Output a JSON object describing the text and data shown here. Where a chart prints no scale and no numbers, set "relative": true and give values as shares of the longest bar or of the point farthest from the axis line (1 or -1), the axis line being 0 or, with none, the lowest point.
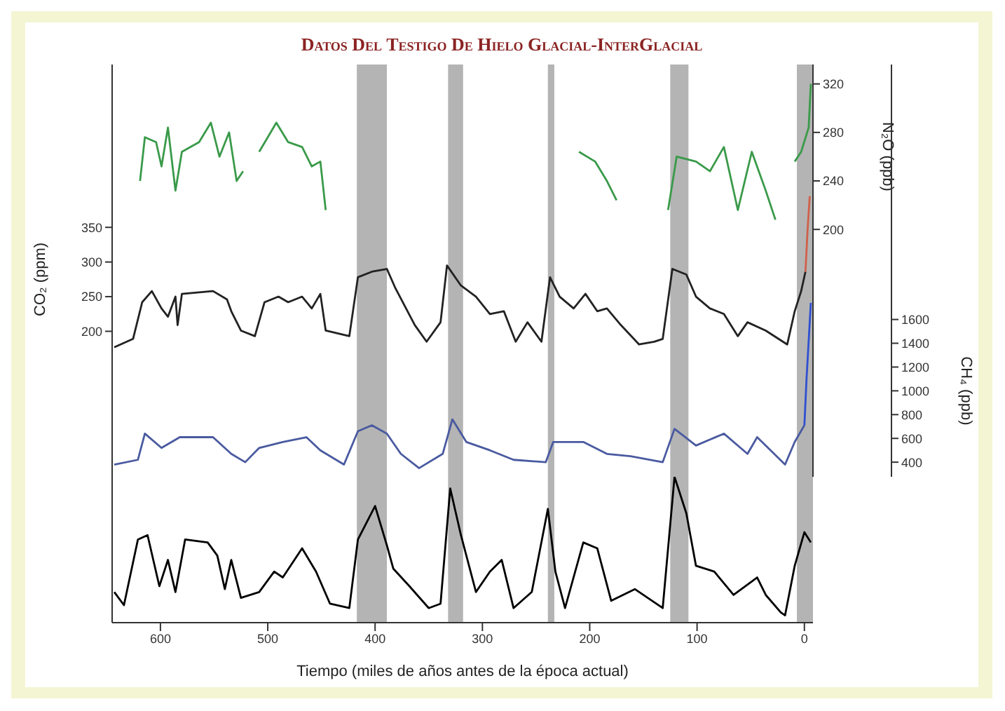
{
  "chart_data": [
    {
      "type": "line",
      "title": "Datos Del Testigo De Hielo Glacial-InterGlacial",
      "ylabel": "CO₂ (ppm)",
      "y2label": "N₂O (ppb)",
      "y3label": "CH₄ (ppb)",
      "tick_labels": "y",
      "xlim": [
        645,
        -8
      ],
      "ylim": [
        -10,
        585
      ],
      "yticks": [
        200,
        250,
        300,
        350
      ],
      "y2lim": [
        -4,
        336
      ],
      "y2ticks": [
        200,
        240,
        280,
        320
      ],
      "y3lim": [
        277,
        3744
      ],
      "y3ticks": [
        400,
        600,
        800,
        1000,
        1200,
        1400,
        1600
      ],
      "bands": [
        {
          "axis": "x",
          "from": 417,
          "to": 389,
          "color": "#b4b4b4"
        },
        {
          "axis": "x",
          "from": 332,
          "to": 318,
          "color": "#b4b4b4"
        },
        {
          "axis": "x",
          "from": 239,
          "to": 233,
          "color": "#b4b4b4"
        },
        {
          "axis": "x",
          "from": 125,
          "to": 108,
          "color": "#b4b4b4"
        },
        {
          "axis": "x",
          "from": 7,
          "to": -8,
          "color": "#b4b4b4"
        }
      ],
      "series": [
        {
          "axis": "y2",
          "color": "#3a9a4a",
          "x": [
            619,
            614.5,
            604,
            599,
            593,
            586,
            580,
            564,
            553,
            545,
            536,
            529,
            523,
            519,
            508,
            492,
            481,
            468,
            459,
            451,
            446,
            300,
            210,
            195,
            184,
            175,
            150,
            127,
            119,
            101,
            88,
            75,
            62,
            49,
            36,
            27,
            18,
            9,
            3,
            -4,
            -6
          ],
          "values": [
            240,
            276,
            272,
            252,
            284,
            232,
            264,
            272,
            288,
            260,
            280,
            240,
            248,
            null,
            264,
            288,
            272,
            268,
            252,
            256,
            216,
            null,
            264,
            256,
            240,
            224,
            null,
            216,
            260,
            256,
            248,
            268,
            216,
            264,
            232,
            208,
            null,
            256,
            264,
            284,
            320
          ]
        },
        {
          "color": "#222222",
          "x": [
            643,
            625.5,
            617,
            608,
            599,
            593,
            586,
            584,
            580,
            551,
            538,
            534,
            525,
            512,
            503,
            490,
            481,
            468,
            459,
            451,
            446,
            424,
            416,
            403,
            389,
            381,
            363,
            352,
            339,
            333,
            320,
            306,
            293,
            280,
            269,
            258,
            245,
            237,
            228,
            215,
            204,
            193,
            184,
            171,
            154,
            140,
            132,
            123,
            110,
            101,
            88,
            75,
            62,
            53,
            36,
            16,
            9,
            3,
            -1
          ],
          "values": [
            177,
            189,
            242,
            258,
            233,
            221,
            250,
            209,
            254,
            258,
            246,
            229,
            201,
            193,
            242,
            250,
            242,
            250,
            233,
            254,
            201,
            193,
            278,
            286,
            290,
            262,
            209,
            185,
            213,
            295,
            266,
            250,
            225,
            229,
            185,
            213,
            185,
            278,
            250,
            233,
            254,
            229,
            233,
            209,
            181,
            185,
            189,
            290,
            282,
            250,
            233,
            225,
            193,
            213,
            201,
            181,
            229,
            258,
            286
          ]
        },
        {
          "color": "#d0604a",
          "x": [
            -1,
            -3,
            -5
          ],
          "values": [
            286,
            347,
            395
          ]
        },
        {
          "axis": "y3",
          "color": "#4a5aa0",
          "x": [
            643,
            621,
            614.5,
            599,
            582,
            551,
            534,
            521,
            508,
            486,
            464,
            451,
            429,
            416,
            403,
            389,
            376,
            359,
            337,
            328,
            315,
            293,
            271,
            241,
            234,
            206,
            184,
            162,
            132,
            121,
            101,
            75,
            53,
            44,
            18,
            9,
            0
          ],
          "values": [
            380,
            420,
            640,
            520,
            610,
            610,
            470,
            400,
            520,
            570,
            610,
            500,
            380,
            660,
            710,
            640,
            470,
            350,
            470,
            760,
            570,
            500,
            420,
            400,
            570,
            570,
            470,
            450,
            400,
            680,
            540,
            640,
            470,
            610,
            380,
            570,
            710
          ]
        },
        {
          "axis": "y3",
          "color": "#3050d0",
          "x": [
            0,
            -2,
            -6
          ],
          "values": [
            710,
            1100,
            1740
          ]
        }
      ]
    },
    {
      "type": "line",
      "relative": true,
      "xlabel": "Tiempo (miles de años antes de la época actual)",
      "xlim": [
        645,
        -8
      ],
      "xticks": [
        600,
        500,
        400,
        300,
        200,
        100,
        0
      ],
      "bands": [
        {
          "axis": "x",
          "from": 417,
          "to": 389,
          "color": "#b4b4b4"
        },
        {
          "axis": "x",
          "from": 332,
          "to": 318,
          "color": "#b4b4b4"
        },
        {
          "axis": "x",
          "from": 239,
          "to": 233,
          "color": "#b4b4b4"
        },
        {
          "axis": "x",
          "from": 125,
          "to": 108,
          "color": "#b4b4b4"
        },
        {
          "axis": "x",
          "from": 7,
          "to": -8,
          "color": "#b4b4b4"
        }
      ],
      "series": [
        {
          "color": "#000000",
          "x": [
            643,
            634,
            621,
            612,
            601,
            593,
            586,
            577,
            556,
            547,
            540,
            534,
            525,
            508,
            494,
            486,
            468,
            455,
            442,
            424,
            416,
            400,
            389,
            383,
            368,
            350,
            339,
            330,
            320,
            306,
            293,
            282,
            271,
            254,
            239,
            232,
            223,
            206,
            193,
            180,
            158,
            132,
            121,
            110,
            101,
            84,
            66,
            44,
            36,
            22,
            18,
            9,
            0,
            -6
          ],
          "values": [
            0.21,
            0.12,
            0.57,
            0.6,
            0.25,
            0.43,
            0.21,
            0.57,
            0.55,
            0.46,
            0.23,
            0.43,
            0.17,
            0.21,
            0.35,
            0.31,
            0.51,
            0.35,
            0.13,
            0.1,
            0.57,
            0.8,
            0.53,
            0.37,
            0.25,
            0.1,
            0.13,
            0.92,
            0.6,
            0.21,
            0.35,
            0.43,
            0.1,
            0.21,
            0.78,
            0.35,
            0.1,
            0.55,
            0.51,
            0.15,
            0.23,
            0.1,
            1,
            0.75,
            0.39,
            0.35,
            0.19,
            0.31,
            0.19,
            0.07,
            0.05,
            0.39,
            0.62,
            0.55
          ]
        }
      ]
    }
  ]
}
